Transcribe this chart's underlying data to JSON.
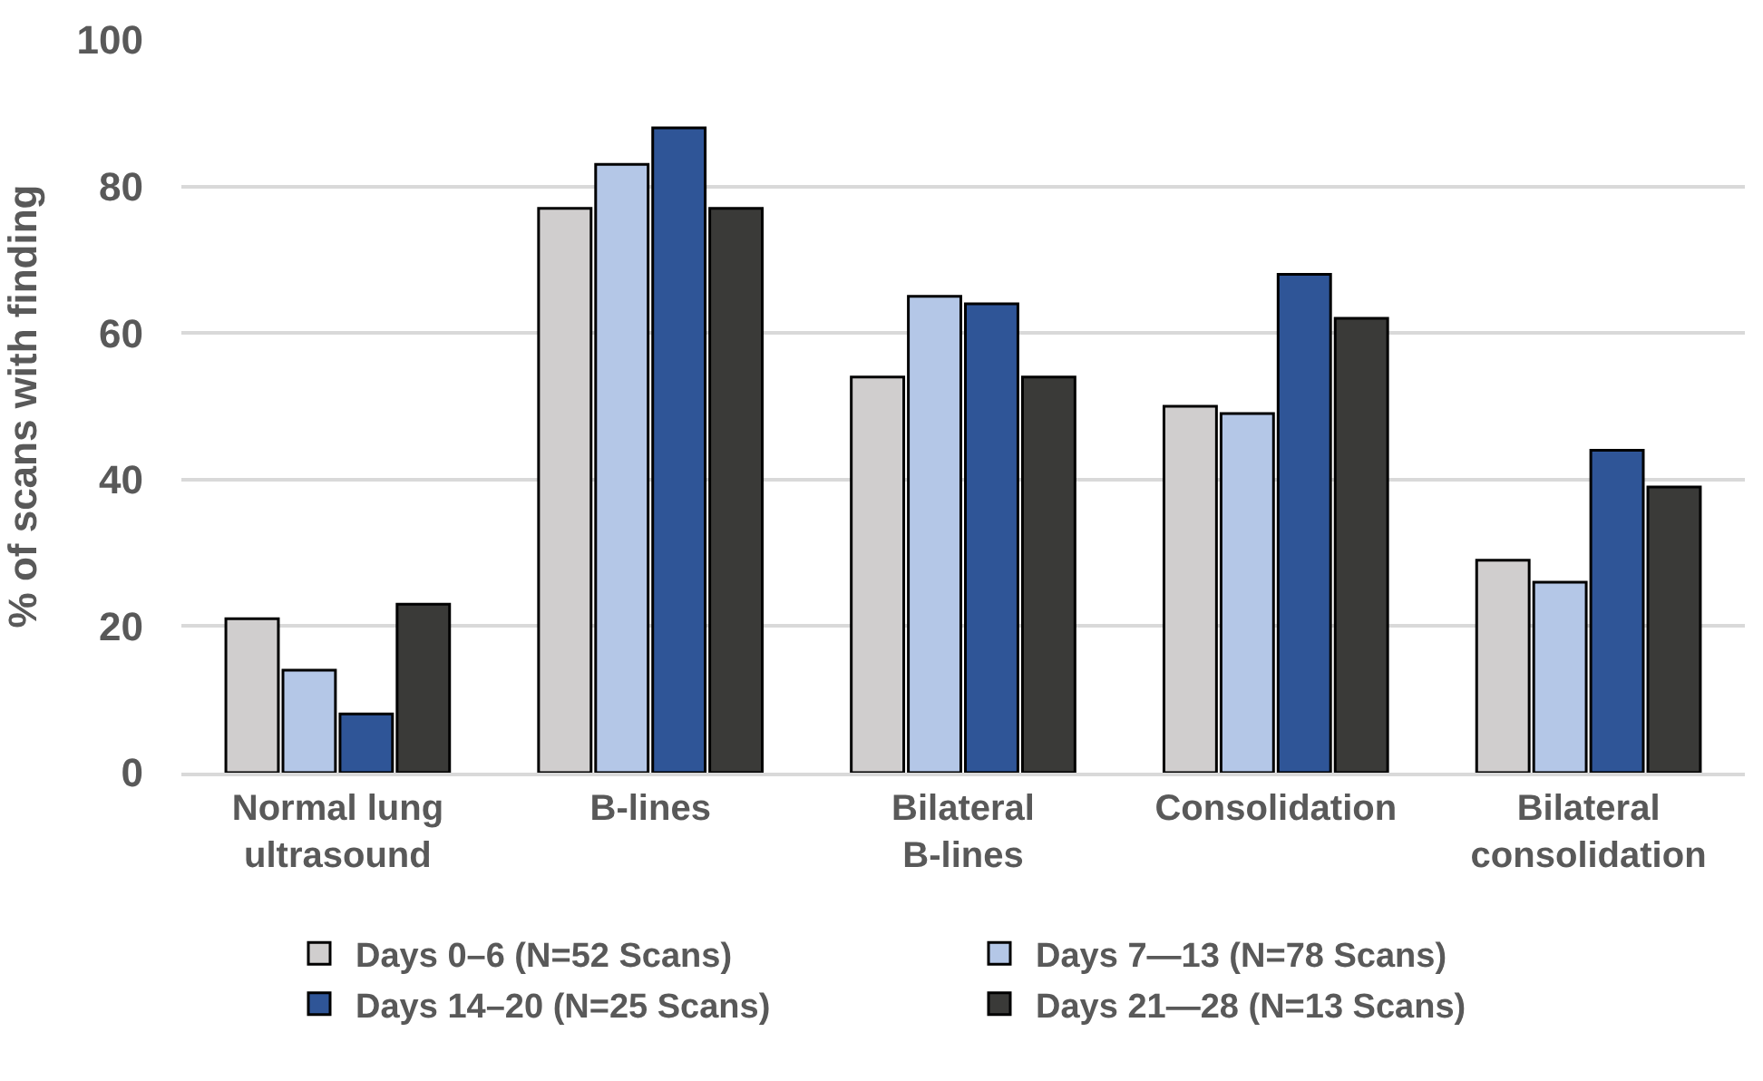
{
  "chart_data": {
    "type": "bar",
    "ylabel": "% of scans with finding",
    "categories": [
      "Normal lung ultrasound",
      "B-lines",
      "Bilateral B-lines",
      "Consolidation",
      "Bilateral consolidation"
    ],
    "series": [
      {
        "name": "Days 0–6 (N=52 Scans)",
        "color": "#d0cece",
        "values": [
          21,
          77,
          54,
          50,
          29
        ]
      },
      {
        "name": "Days 7—13 (N=78 Scans)",
        "color": "#b4c7e7",
        "values": [
          14,
          83,
          65,
          49,
          26
        ]
      },
      {
        "name": "Days 14–20 (N=25 Scans)",
        "color": "#2f5597",
        "values": [
          8,
          88,
          64,
          68,
          44
        ]
      },
      {
        "name": "Days 21—28 (N=13 Scans)",
        "color": "#3a3a38",
        "values": [
          23,
          77,
          54,
          62,
          39
        ]
      }
    ],
    "ylim": [
      0,
      100
    ],
    "yticks": [
      0,
      20,
      40,
      60,
      80,
      100
    ],
    "grid": "y",
    "legend": "bottom"
  }
}
